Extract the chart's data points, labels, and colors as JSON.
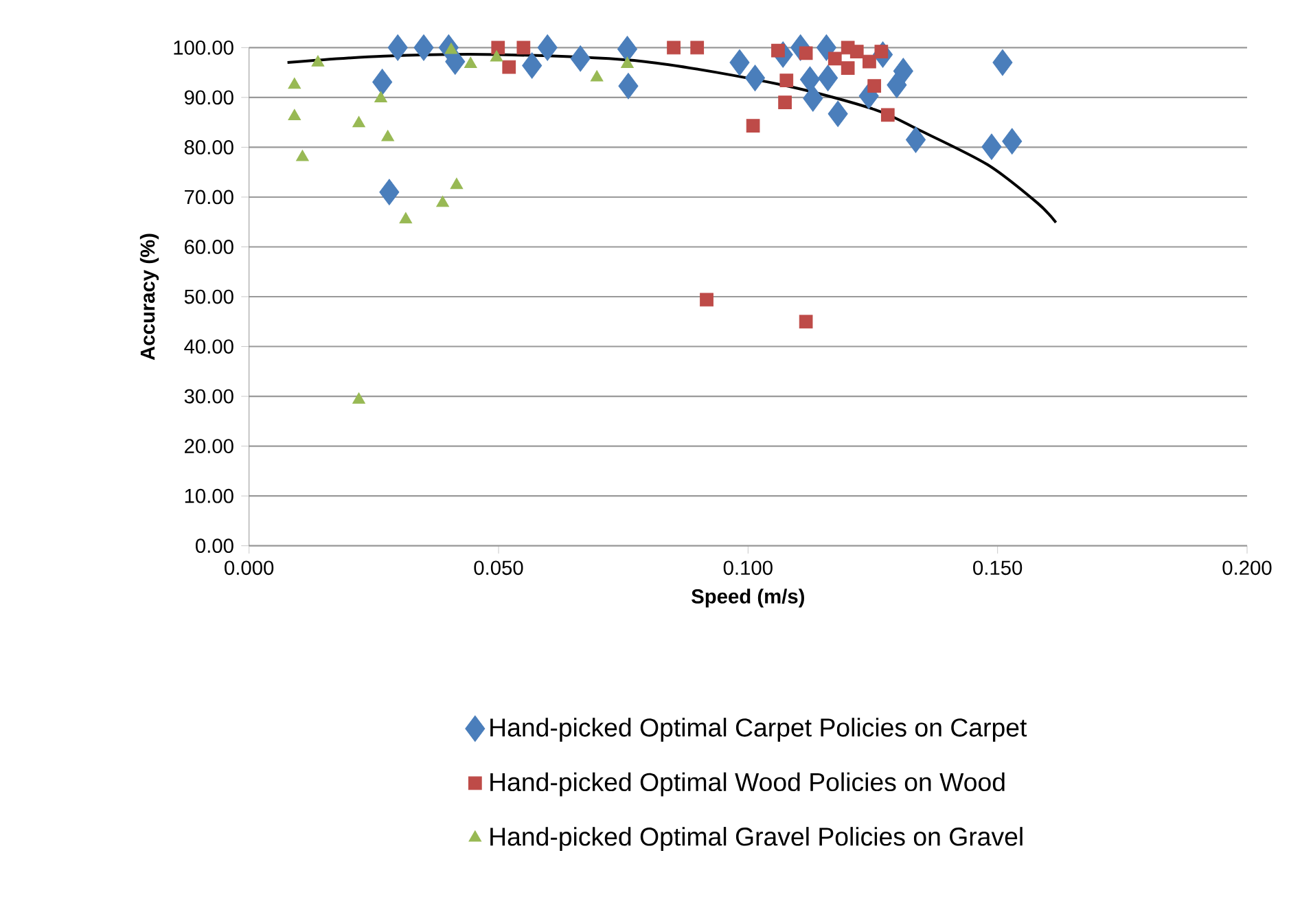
{
  "chart_data": {
    "type": "scatter",
    "xlabel": "Speed (m/s)",
    "ylabel": "Accuracy (%)",
    "xlim": [
      0,
      0.2
    ],
    "ylim": [
      0,
      100
    ],
    "xticks": [
      {
        "value": 0,
        "label": "0.000"
      },
      {
        "value": 0.05,
        "label": "0.050"
      },
      {
        "value": 0.1,
        "label": "0.100"
      },
      {
        "value": 0.15,
        "label": "0.150"
      },
      {
        "value": 0.2,
        "label": "0.200"
      }
    ],
    "yticks": [
      {
        "value": 0,
        "label": "0.00"
      },
      {
        "value": 10,
        "label": "10.00"
      },
      {
        "value": 20,
        "label": "20.00"
      },
      {
        "value": 30,
        "label": "30.00"
      },
      {
        "value": 40,
        "label": "40.00"
      },
      {
        "value": 50,
        "label": "50.00"
      },
      {
        "value": 60,
        "label": "60.00"
      },
      {
        "value": 70,
        "label": "70.00"
      },
      {
        "value": 80,
        "label": "80.00"
      },
      {
        "value": 90,
        "label": "90.00"
      },
      {
        "value": 100,
        "label": "100.00"
      }
    ],
    "grid": "y",
    "legend": "bottom",
    "series": [
      {
        "name": "Hand-picked Optimal Carpet Policies on Carpet",
        "color": "#4a7ebb",
        "marker": "diamond",
        "x": [
          0.0298,
          0.035,
          0.04,
          0.0413,
          0.0267,
          0.0281,
          0.0567,
          0.0598,
          0.0664,
          0.0758,
          0.076,
          0.0983,
          0.1014,
          0.107,
          0.1105,
          0.1124,
          0.116,
          0.1157,
          0.113,
          0.118,
          0.1242,
          0.127,
          0.1311,
          0.1298,
          0.1336,
          0.1488,
          0.1529,
          0.151
        ],
        "values": [
          100,
          100,
          100,
          97.2,
          93.1,
          71,
          96.4,
          100,
          97.8,
          99.7,
          92.3,
          97,
          93.9,
          98.6,
          100,
          93.6,
          93.9,
          100,
          89.8,
          86.7,
          90.3,
          98.6,
          95.3,
          92.5,
          81.5,
          80.1,
          81.2,
          97
        ]
      },
      {
        "name": "Hand-picked Optimal Wood Policies on Wood",
        "color": "#be4b48",
        "marker": "square",
        "x": [
          0.0499,
          0.055,
          0.0521,
          0.0851,
          0.0898,
          0.0917,
          0.101,
          0.106,
          0.1116,
          0.1077,
          0.1074,
          0.1174,
          0.12,
          0.12,
          0.1218,
          0.1243,
          0.1267,
          0.1253,
          0.128,
          0.1116
        ],
        "values": [
          100,
          100,
          96.1,
          100,
          100,
          49.4,
          84.3,
          99.4,
          98.9,
          93.4,
          89,
          97.8,
          100,
          95.9,
          99.2,
          97.2,
          99.2,
          92.3,
          86.5,
          45
        ]
      },
      {
        "name": "Hand-picked Optimal Gravel Policies on Gravel",
        "color": "#98b954",
        "marker": "triangle",
        "x": [
          0.0138,
          0.0091,
          0.0091,
          0.0107,
          0.022,
          0.0264,
          0.0278,
          0.0405,
          0.0444,
          0.0496,
          0.0697,
          0.0758,
          0.0416,
          0.0388,
          0.0314,
          0.022
        ],
        "values": [
          97,
          92.5,
          86.2,
          78,
          84.8,
          89.8,
          82,
          99.5,
          96.7,
          98,
          94,
          96.7,
          72.4,
          68.8,
          65.5,
          29.3
        ]
      },
      {
        "type": "line",
        "color": "#000000",
        "marker": "none",
        "x": [
          0.0077,
          0.027,
          0.05,
          0.0793,
          0.1069,
          0.1253,
          0.1344,
          0.148,
          0.158,
          0.1617
        ],
        "values": [
          97,
          98.3,
          98.6,
          97.2,
          92.5,
          87.6,
          83.4,
          76.5,
          68.8,
          64.9
        ]
      }
    ]
  }
}
